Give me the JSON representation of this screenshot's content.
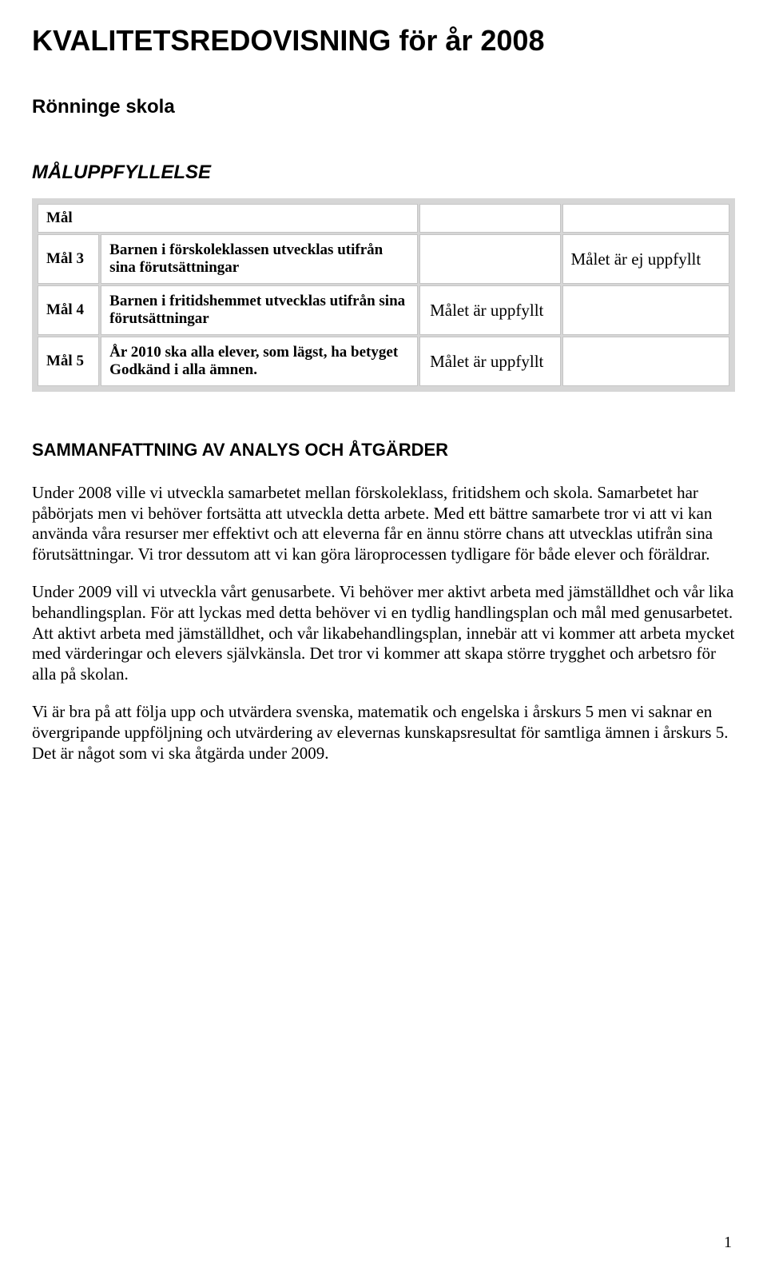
{
  "title": "KVALITETSREDOVISNING för år 2008",
  "school": "Rönninge skola",
  "maluppfyllelse_heading": "MÅLUPPFYLLELSE",
  "goals_header": {
    "label": "Mål"
  },
  "goals": [
    {
      "label": "Mål 3",
      "desc": "Barnen i förskoleklassen utvecklas utifrån sina förutsättningar",
      "status_mid": "",
      "status_right": "Målet är ej uppfyllt"
    },
    {
      "label": "Mål 4",
      "desc": "Barnen i fritidshemmet utvecklas utifrån sina förutsättningar",
      "status_mid": "Målet är uppfyllt",
      "status_right": ""
    },
    {
      "label": "Mål 5",
      "desc": "År 2010 ska alla elever, som lägst, ha betyget Godkänd i alla ämnen.",
      "status_mid": "Målet är uppfyllt",
      "status_right": ""
    }
  ],
  "summary_heading": "SAMMANFATTNING AV ANALYS OCH ÅTGÄRDER",
  "paragraphs": [
    "Under 2008 ville vi utveckla samarbetet mellan förskoleklass, fritidshem och skola. Samarbetet har påbörjats men vi behöver fortsätta att utveckla detta arbete. Med ett bättre samarbete tror vi att vi kan använda våra resurser mer effektivt och att eleverna får en ännu större chans att utvecklas utifrån sina förutsättningar. Vi tror dessutom att vi kan göra läroprocessen tydligare för både elever och föräldrar.",
    "Under 2009 vill vi utveckla vårt genusarbete. Vi behöver mer aktivt arbeta med jämställdhet och vår lika behandlingsplan. För att lyckas med detta behöver vi en tydlig handlingsplan och mål med genusarbetet. Att aktivt arbeta med jämställdhet, och vår likabehandlingsplan, innebär att vi kommer att arbeta mycket med värderingar och elevers självkänsla. Det tror vi kommer att skapa större trygghet och arbetsro för alla på skolan.",
    "Vi är bra på att följa upp och utvärdera svenska, matematik och engelska i årskurs 5 men vi saknar en övergripande uppföljning och utvärdering av elevernas kunskapsresultat för samtliga ämnen i årskurs 5. Det är något som vi ska åtgärda under 2009."
  ],
  "page_number": "1"
}
